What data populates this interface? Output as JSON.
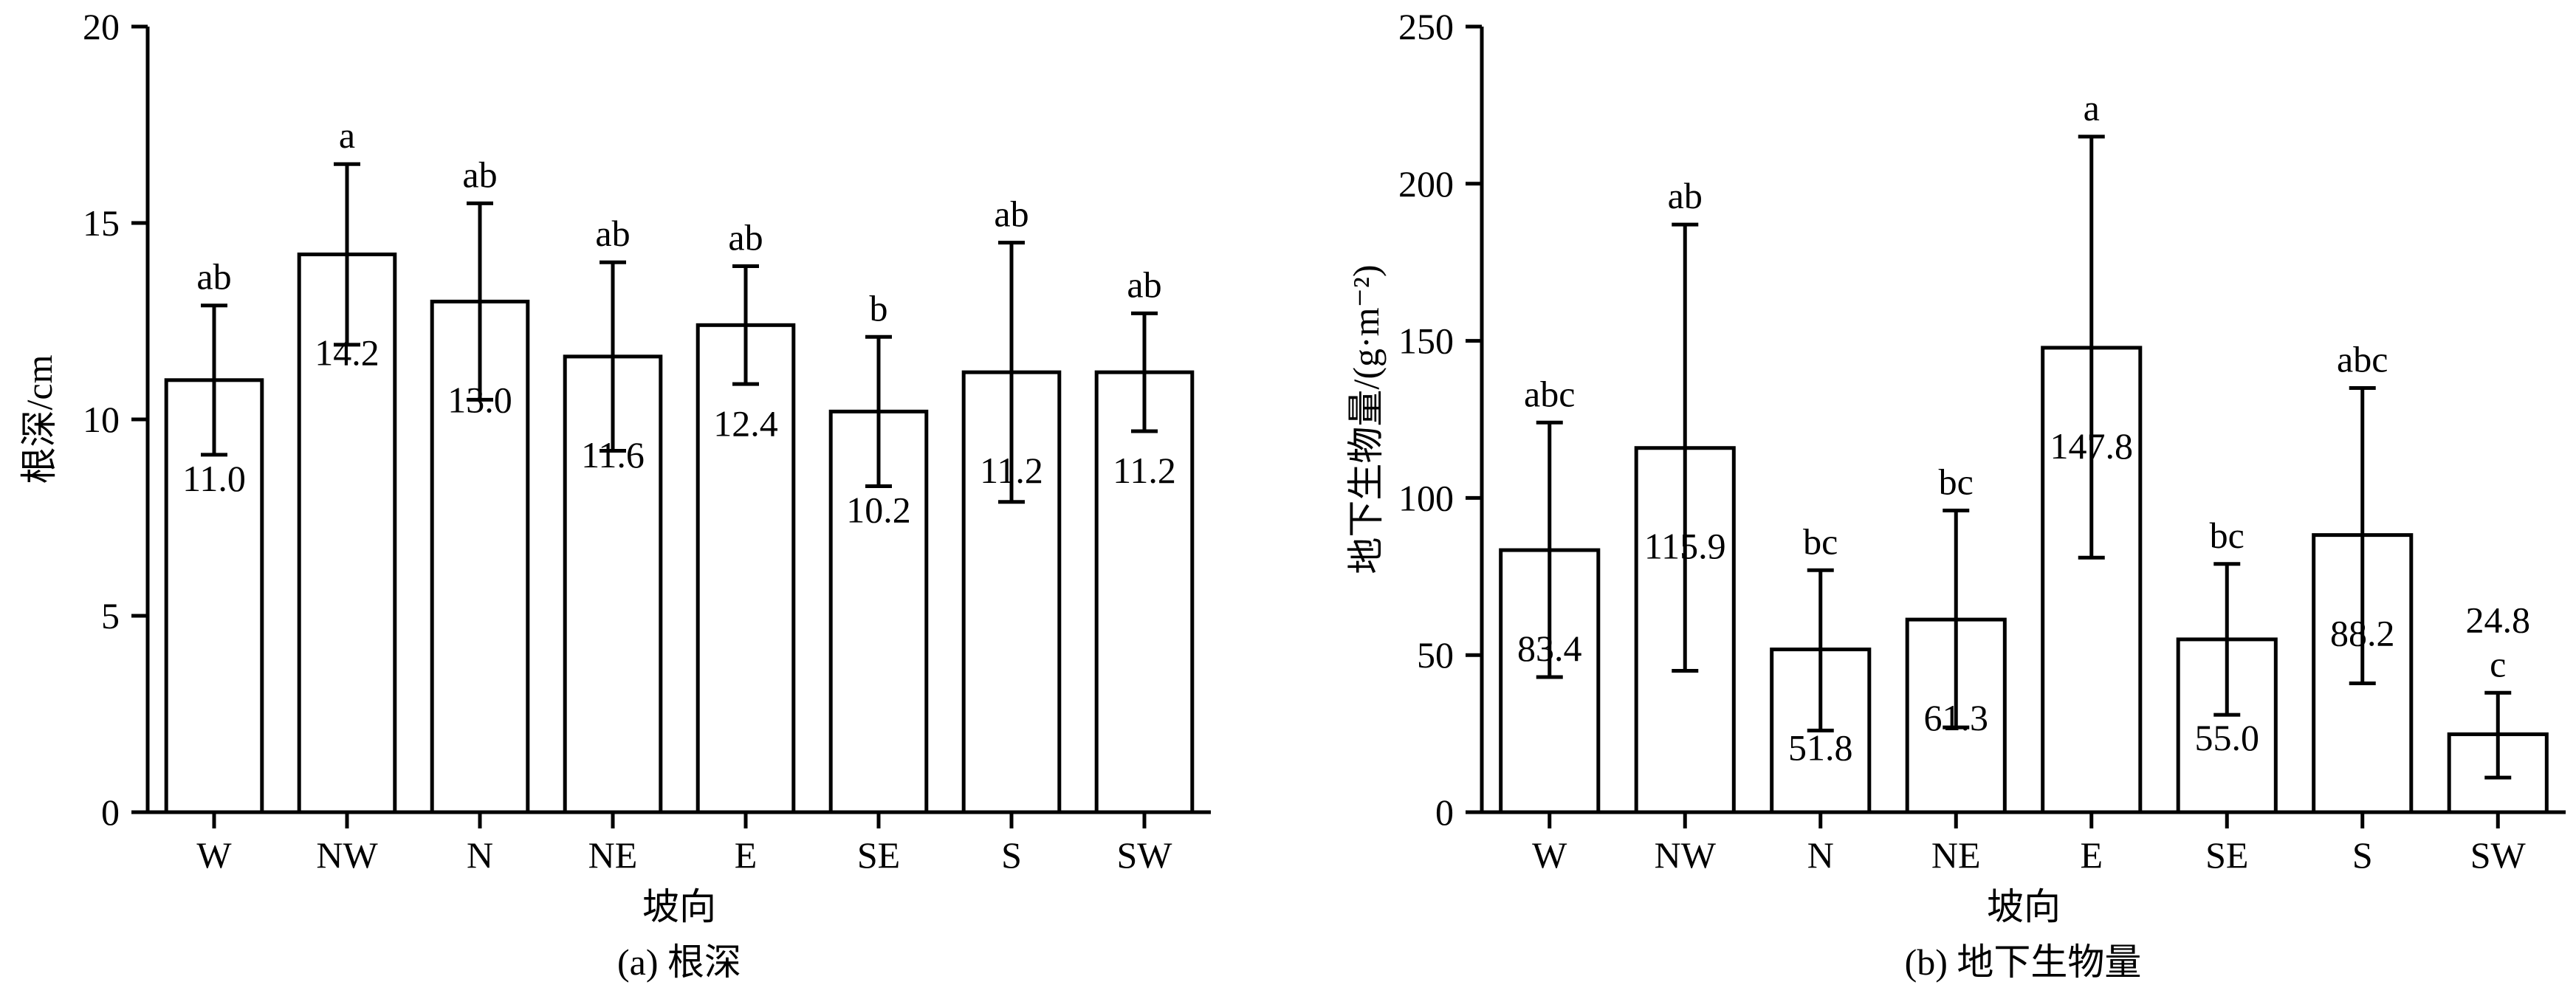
{
  "chart_data": [
    {
      "type": "bar",
      "caption": "(a) 根深",
      "xlabel": "坡向",
      "ylabel": "根深/cm",
      "ylim": [
        0,
        20
      ],
      "yticks": [
        0,
        5,
        10,
        15,
        20
      ],
      "categories": [
        "W",
        "NW",
        "N",
        "NE",
        "E",
        "SE",
        "S",
        "SW"
      ],
      "values": [
        11.0,
        14.2,
        13.0,
        11.6,
        12.4,
        10.2,
        11.2,
        11.2
      ],
      "value_labels": [
        "11.0",
        "14.2",
        "13.0",
        "11.6",
        "12.4",
        "10.2",
        "11.2",
        "11.2"
      ],
      "error_upper": [
        12.9,
        16.5,
        15.5,
        14.0,
        13.9,
        12.1,
        14.5,
        12.7
      ],
      "error_lower": [
        9.1,
        11.9,
        10.5,
        9.2,
        10.9,
        8.3,
        7.9,
        9.7
      ],
      "significance_letters": [
        "ab",
        "a",
        "ab",
        "ab",
        "ab",
        "b",
        "ab",
        "ab"
      ],
      "label_above_letter": [
        false,
        false,
        false,
        false,
        false,
        false,
        false,
        false
      ],
      "grid": false
    },
    {
      "type": "bar",
      "caption": "(b) 地下生物量",
      "xlabel": "坡向",
      "ylabel": "地下生物量/(g·m⁻²)",
      "ylim": [
        0,
        250
      ],
      "yticks": [
        0,
        50,
        100,
        150,
        200,
        250
      ],
      "categories": [
        "W",
        "NW",
        "N",
        "NE",
        "E",
        "SE",
        "S",
        "SW"
      ],
      "values": [
        83.4,
        115.9,
        51.8,
        61.3,
        147.8,
        55.0,
        88.2,
        24.8
      ],
      "value_labels": [
        "83.4",
        "115.9",
        "51.8",
        "61.3",
        "147.8",
        "55.0",
        "88.2",
        "24.8"
      ],
      "error_upper": [
        124,
        187,
        77,
        96,
        215,
        79,
        135,
        38
      ],
      "error_lower": [
        43,
        45,
        26,
        27,
        81,
        31,
        41,
        11
      ],
      "significance_letters": [
        "abc",
        "ab",
        "bc",
        "bc",
        "a",
        "bc",
        "abc",
        "c"
      ],
      "label_above_letter": [
        false,
        false,
        false,
        false,
        false,
        false,
        false,
        true
      ],
      "grid": false
    }
  ]
}
